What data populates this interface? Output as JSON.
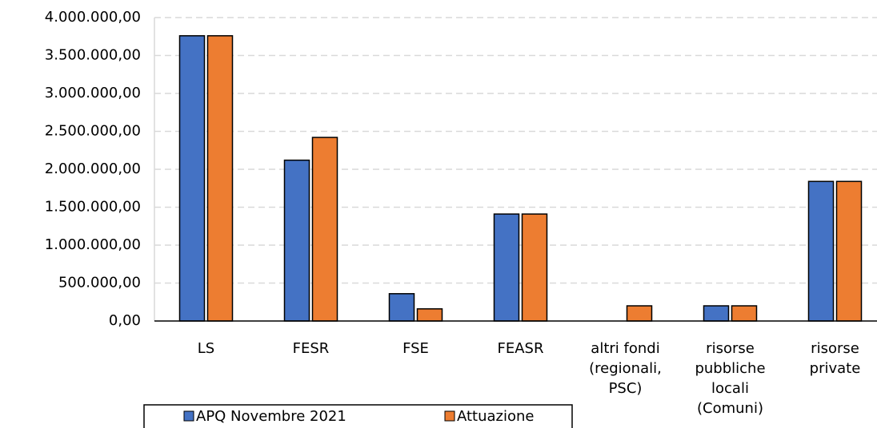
{
  "chart_data": {
    "type": "bar",
    "categories": [
      "LS",
      "FESR",
      "FSE",
      "FEASR",
      "altri fondi\n(regionali,\nPSC)",
      "risorse\npubbliche\nlocali\n(Comuni)",
      "risorse\nprivate"
    ],
    "series": [
      {
        "name": "APQ  Novembre 2021",
        "color": "#4472c4",
        "values": [
          3760000,
          2120000,
          360000,
          1410000,
          0,
          200000,
          1840000
        ]
      },
      {
        "name": "Attuazione",
        "color": "#ed7d31",
        "values": [
          3760000,
          2420000,
          160000,
          1410000,
          200000,
          200000,
          1840000
        ]
      }
    ],
    "ylim": [
      0,
      4000000
    ],
    "yticks": [
      {
        "value": 0,
        "label": "0,00"
      },
      {
        "value": 500000,
        "label": "500.000,00"
      },
      {
        "value": 1000000,
        "label": "1.000.000,00"
      },
      {
        "value": 1500000,
        "label": "1.500.000,00"
      },
      {
        "value": 2000000,
        "label": "2.000.000,00"
      },
      {
        "value": 2500000,
        "label": "2.500.000,00"
      },
      {
        "value": 3000000,
        "label": "3.000.000,00"
      },
      {
        "value": 3500000,
        "label": "3.500.000,00"
      },
      {
        "value": 4000000,
        "label": "4.000.000,00"
      }
    ],
    "grid": true,
    "legend": "bottom"
  }
}
